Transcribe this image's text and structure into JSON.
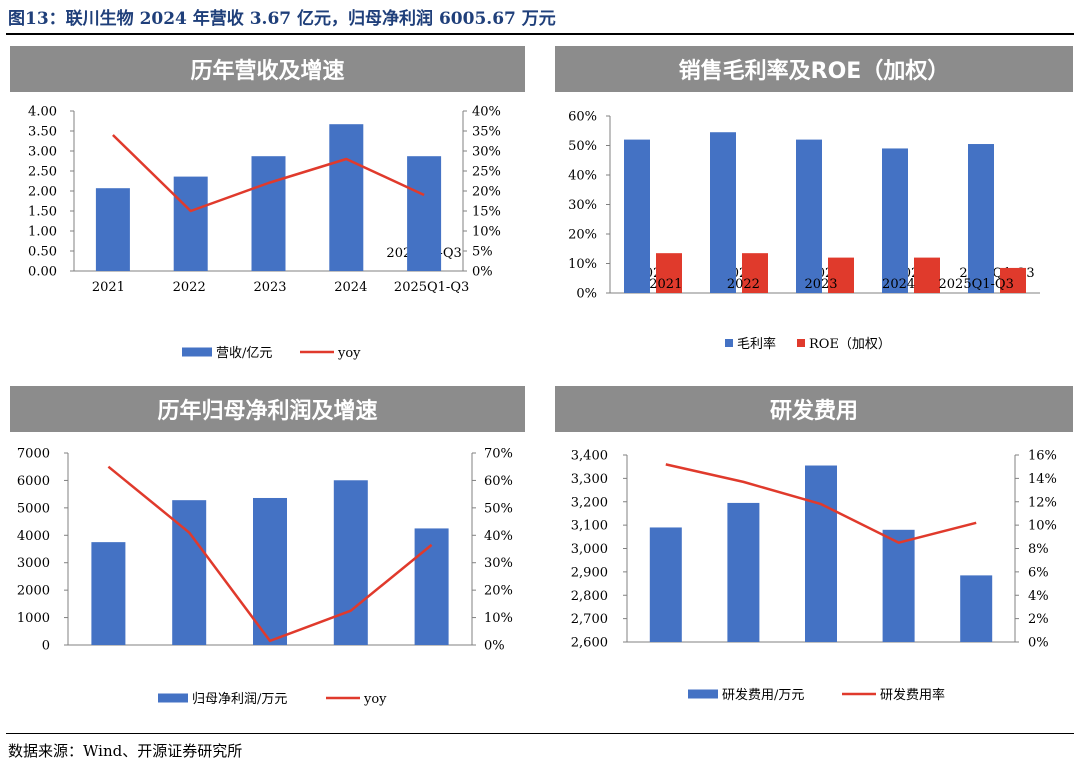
{
  "figure_title": "图13：联川生物 2024 年营收 3.67 亿元，归母净利润 6005.67 万元",
  "source_note": "数据来源：Wind、开源证券研究所",
  "colors": {
    "bar_blue": "#4472c4",
    "line_red": "#e03a2c",
    "bar_red": "#e03a2c",
    "banner_gray": "#8c8c8c",
    "title_blue": "#1f3f7a"
  },
  "chart_data": [
    {
      "type": "bar+line",
      "title": "历年营收及增速",
      "categories": [
        "2021",
        "2022",
        "2023",
        "2024",
        "2025Q1-Q3"
      ],
      "series": [
        {
          "name": "营收/亿元",
          "kind": "bar",
          "axis": "left",
          "values": [
            2.07,
            2.36,
            2.87,
            3.67,
            2.87
          ]
        },
        {
          "name": "yoy",
          "kind": "line",
          "axis": "right",
          "values": [
            0.34,
            0.15,
            0.22,
            0.28,
            0.19
          ]
        }
      ],
      "left_axis": {
        "min": 0,
        "max": 4,
        "step": 0.5,
        "ticks": [
          "0.00",
          "0.50",
          "1.00",
          "1.50",
          "2.00",
          "2.50",
          "3.00",
          "3.50",
          "4.00"
        ]
      },
      "right_axis": {
        "min": 0,
        "max": 0.4,
        "step": 0.05,
        "ticks": [
          "0%",
          "5%",
          "10%",
          "15%",
          "20%",
          "25%",
          "30%",
          "35%",
          "40%"
        ]
      },
      "legend": [
        "营收/亿元",
        "yoy"
      ]
    },
    {
      "type": "bar",
      "title": "销售毛利率及ROE（加权）",
      "categories": [
        "2021",
        "2022",
        "2023",
        "2024",
        "2025Q1-Q3"
      ],
      "series": [
        {
          "name": "毛利率",
          "kind": "bar",
          "axis": "left",
          "values": [
            0.52,
            0.545,
            0.52,
            0.49,
            0.505
          ]
        },
        {
          "name": "ROE（加权）",
          "kind": "bar",
          "axis": "left",
          "values": [
            0.135,
            0.135,
            0.12,
            0.12,
            0.085
          ]
        }
      ],
      "left_axis": {
        "min": 0,
        "max": 0.6,
        "step": 0.1,
        "ticks": [
          "0%",
          "10%",
          "20%",
          "30%",
          "40%",
          "50%",
          "60%"
        ]
      },
      "legend": [
        "毛利率",
        "ROE（加权）"
      ]
    },
    {
      "type": "bar+line",
      "title": "历年归母净利润及增速",
      "categories": [
        "2021",
        "2022",
        "2023",
        "2024",
        "2025Q1-Q3"
      ],
      "series": [
        {
          "name": "归母净利润/万元",
          "kind": "bar",
          "axis": "left",
          "values": [
            3750,
            5280,
            5360,
            6005.67,
            4250
          ]
        },
        {
          "name": "yoy",
          "kind": "line",
          "axis": "right",
          "values": [
            0.65,
            0.41,
            0.015,
            0.125,
            0.365
          ]
        }
      ],
      "left_axis": {
        "min": 0,
        "max": 7000,
        "step": 1000,
        "ticks": [
          "0",
          "1000",
          "2000",
          "3000",
          "4000",
          "5000",
          "6000",
          "7000"
        ]
      },
      "right_axis": {
        "min": 0,
        "max": 0.7,
        "step": 0.1,
        "ticks": [
          "0%",
          "10%",
          "20%",
          "30%",
          "40%",
          "50%",
          "60%",
          "70%"
        ]
      },
      "legend": [
        "归母净利润/万元",
        "yoy"
      ]
    },
    {
      "type": "bar+line",
      "title": "研发费用",
      "categories": [
        "2021",
        "2022",
        "2023",
        "2024",
        "2025Q1-Q3"
      ],
      "series": [
        {
          "name": "研发费用/万元",
          "kind": "bar",
          "axis": "left",
          "values": [
            3090,
            3195,
            3355,
            3080,
            2885
          ]
        },
        {
          "name": "研发费用率",
          "kind": "line",
          "axis": "right",
          "values": [
            0.152,
            0.137,
            0.118,
            0.085,
            0.102
          ]
        }
      ],
      "left_axis": {
        "min": 2600,
        "max": 3400,
        "step": 100,
        "ticks": [
          "2,600",
          "2,700",
          "2,800",
          "2,900",
          "3,000",
          "3,100",
          "3,200",
          "3,300",
          "3,400"
        ]
      },
      "right_axis": {
        "min": 0,
        "max": 0.16,
        "step": 0.02,
        "ticks": [
          "0%",
          "2%",
          "4%",
          "6%",
          "8%",
          "10%",
          "12%",
          "14%",
          "16%"
        ]
      },
      "legend": [
        "研发费用/万元",
        "研发费用率"
      ]
    }
  ]
}
